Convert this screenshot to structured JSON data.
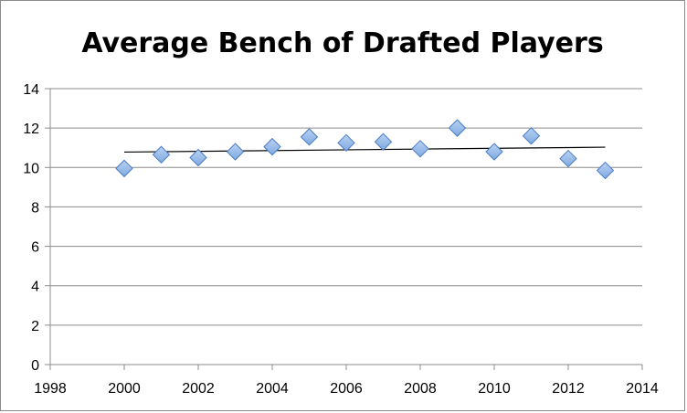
{
  "chart_data": {
    "type": "scatter",
    "title": "Average Bench of Drafted Players",
    "xlabel": "",
    "ylabel": "",
    "xlim": [
      1998,
      2014
    ],
    "ylim": [
      0,
      14
    ],
    "x_ticks": [
      1998,
      2000,
      2002,
      2004,
      2006,
      2008,
      2010,
      2012,
      2014
    ],
    "y_ticks": [
      0,
      2,
      4,
      6,
      8,
      10,
      12,
      14
    ],
    "grid": "horizontal",
    "legend": "none",
    "marker_color": "#7fa9e0",
    "marker_stroke": "#4a7cc4",
    "trendline_color": "#000000",
    "series": [
      {
        "x": [
          2000,
          2001,
          2002,
          2003,
          2004,
          2005,
          2006,
          2007,
          2008,
          2009,
          2010,
          2011,
          2012,
          2013
        ],
        "y": [
          9.95,
          10.65,
          10.5,
          10.8,
          11.05,
          11.55,
          11.25,
          11.3,
          10.95,
          12.0,
          10.8,
          11.6,
          10.45,
          9.85
        ]
      }
    ],
    "trendline": {
      "x": [
        2000,
        2013
      ],
      "y": [
        10.78,
        11.03
      ]
    }
  }
}
